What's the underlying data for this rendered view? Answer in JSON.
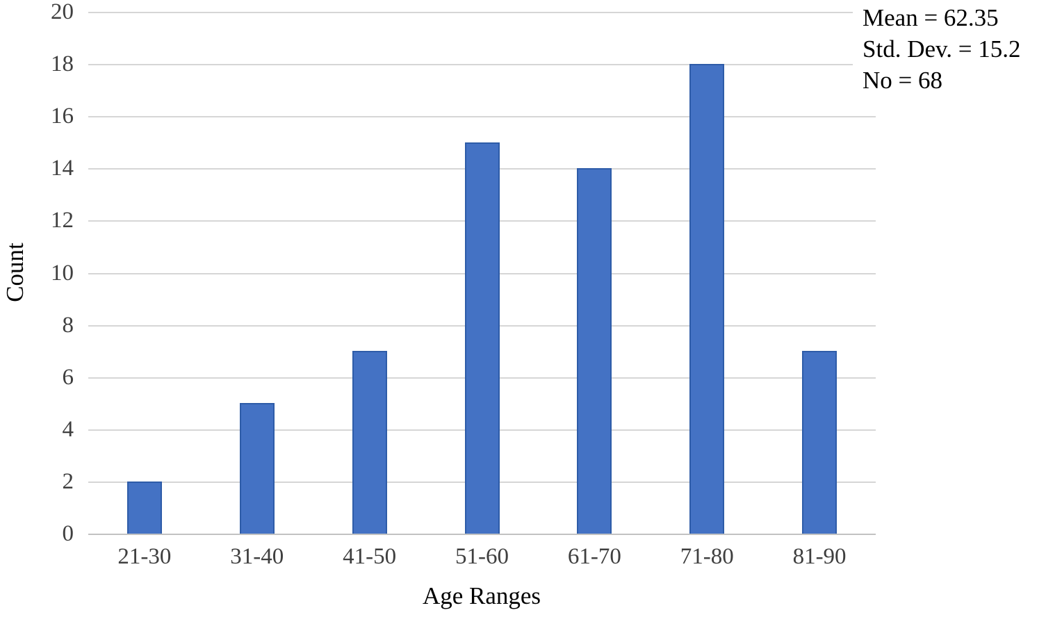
{
  "chart_data": {
    "type": "bar",
    "categories": [
      "21-30",
      "31-40",
      "41-50",
      "51-60",
      "61-70",
      "71-80",
      "81-90"
    ],
    "values": [
      2,
      5,
      7,
      15,
      14,
      18,
      7
    ],
    "xlabel": "Age Ranges",
    "ylabel": "Count",
    "ylim": [
      0,
      20
    ],
    "ytick_step": 2,
    "yticks": [
      0,
      2,
      4,
      6,
      8,
      10,
      12,
      14,
      16,
      18,
      20
    ],
    "grid": true,
    "legend": "none",
    "annotation": [
      "Mean = 62.35",
      "Std. Dev. = 15.2",
      "No = 68"
    ],
    "colors": {
      "bar_fill": "#4472C4",
      "bar_border": "#2E5CA8",
      "gridline": "#D6D6D6",
      "axis_line": "#C2C2C2",
      "tick_text": "#3F3F3F",
      "title_text": "#000000",
      "background": "#FFFFFF"
    }
  }
}
